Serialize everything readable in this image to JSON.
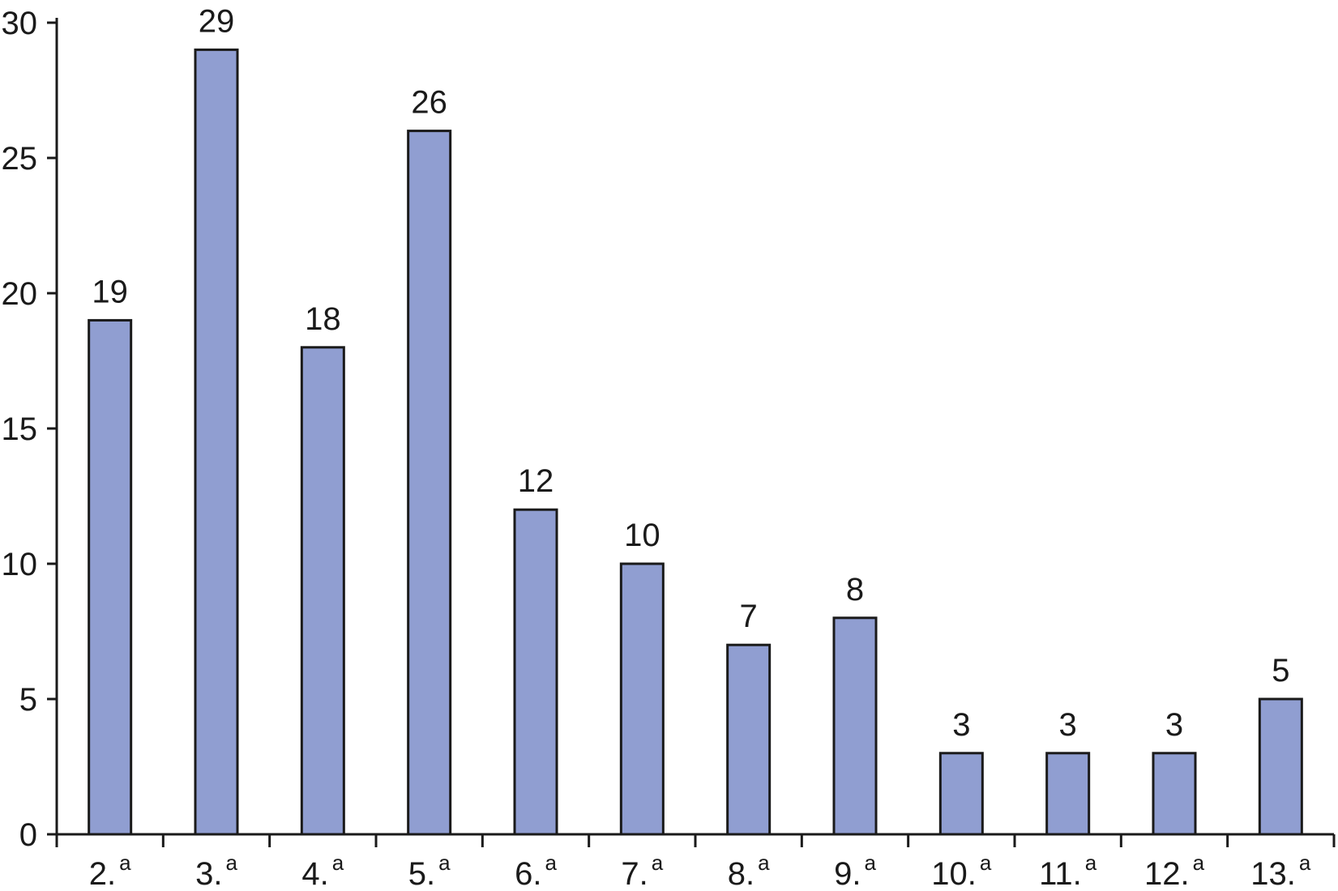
{
  "chart_data": {
    "type": "bar",
    "title": "",
    "xlabel": "",
    "ylabel": "",
    "categories": [
      "2.",
      "3.",
      "4.",
      "5.",
      "6.",
      "7.",
      "8.",
      "9.",
      "10.",
      "11.",
      "12.",
      "13."
    ],
    "category_superscript": "a",
    "values": [
      19,
      29,
      18,
      26,
      12,
      10,
      7,
      8,
      3,
      3,
      3,
      5
    ],
    "data_labels": [
      "19",
      "29",
      "18",
      "26",
      "12",
      "10",
      "7",
      "8",
      "3",
      "3",
      "3",
      "5"
    ],
    "ylim": [
      0,
      30
    ],
    "yticks": [
      0,
      5,
      10,
      15,
      20,
      25,
      30
    ],
    "ytick_labels": [
      "0",
      "5",
      "10",
      "15",
      "20",
      "25",
      "30"
    ],
    "grid": false,
    "legend": "none",
    "bar_color": "#909ed1",
    "bar_edge_color": "#1a1a1a"
  }
}
